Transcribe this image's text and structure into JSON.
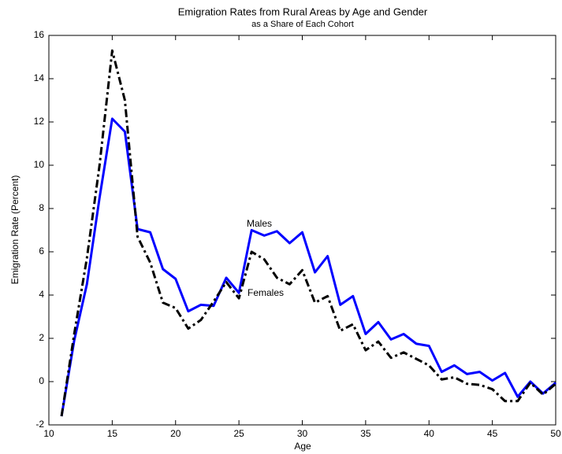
{
  "chart_data": {
    "type": "line",
    "title": "Emigration Rates from Rural Areas by Age and Gender",
    "subtitle": "as a Share of Each Cohort",
    "x_label": "Age",
    "y_label": "Emigration Rate (Percent)",
    "x": [
      11,
      12,
      13,
      14,
      15,
      16,
      17,
      18,
      19,
      20,
      21,
      22,
      23,
      24,
      25,
      26,
      27,
      28,
      29,
      30,
      31,
      32,
      33,
      34,
      35,
      36,
      37,
      38,
      39,
      40,
      41,
      42,
      43,
      44,
      45,
      46,
      47,
      48,
      49,
      50
    ],
    "series": [
      {
        "name": "Males",
        "color": "#0000ff",
        "dash": "solid",
        "values": [
          -1.6,
          1.9,
          4.5,
          8.5,
          12.15,
          11.55,
          7.05,
          6.9,
          5.2,
          4.75,
          3.25,
          3.55,
          3.5,
          4.8,
          4.1,
          7.0,
          6.75,
          6.95,
          6.4,
          6.9,
          5.05,
          5.8,
          3.55,
          3.95,
          2.2,
          2.75,
          1.95,
          2.2,
          1.75,
          1.65,
          0.45,
          0.75,
          0.35,
          0.45,
          0.05,
          0.4,
          -0.7,
          0.0,
          -0.55,
          -0.05
        ]
      },
      {
        "name": "Females",
        "color": "#000000",
        "dash": "dashdot",
        "values": [
          -1.6,
          2.2,
          5.7,
          10,
          15.3,
          13,
          6.7,
          5.5,
          3.65,
          3.4,
          2.45,
          2.85,
          3.7,
          4.6,
          3.85,
          6.0,
          5.65,
          4.8,
          4.5,
          5.15,
          3.65,
          3.95,
          2.35,
          2.65,
          1.45,
          1.85,
          1.1,
          1.35,
          1.05,
          0.75,
          0.1,
          0.2,
          -0.1,
          -0.15,
          -0.35,
          -0.9,
          -0.9,
          -0.05,
          -0.6,
          -0.1
        ]
      }
    ],
    "xlim": [
      10,
      50
    ],
    "xticks": [
      10,
      15,
      20,
      25,
      30,
      35,
      40,
      45,
      50
    ],
    "ylim": [
      -2,
      16
    ],
    "yticks": [
      -2,
      0,
      2,
      4,
      6,
      8,
      10,
      12,
      14,
      16
    ],
    "grid": false
  }
}
